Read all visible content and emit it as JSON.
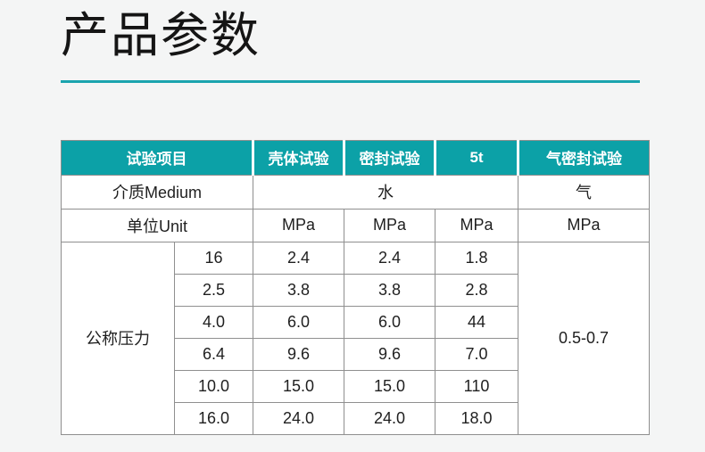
{
  "page": {
    "title": "产品参数",
    "background_color": "#f4f5f5",
    "accent_color": "#1ba4ae",
    "header_color": "#0ca1a7"
  },
  "table": {
    "headers": {
      "test_item": "试验项目",
      "shell_test": "壳体试验",
      "seal_test": "密封试验",
      "five_t": "5t",
      "gas_seal_test": "气密封试验"
    },
    "medium_row": {
      "label": "介质Medium",
      "water_value": "水",
      "gas_value": "气"
    },
    "unit_row": {
      "label": "单位Unit",
      "units": [
        "MPa",
        "MPa",
        "MPa",
        "MPa"
      ]
    },
    "pressure_label": "公称压力",
    "gas_seal_range": "0.5-0.7",
    "rows": [
      {
        "dn": "16",
        "shell": "2.4",
        "seal": "2.4",
        "five_t": "1.8"
      },
      {
        "dn": "2.5",
        "shell": "3.8",
        "seal": "3.8",
        "five_t": "2.8"
      },
      {
        "dn": "4.0",
        "shell": "6.0",
        "seal": "6.0",
        "five_t": "44"
      },
      {
        "dn": "6.4",
        "shell": "9.6",
        "seal": "9.6",
        "five_t": "7.0"
      },
      {
        "dn": "10.0",
        "shell": "15.0",
        "seal": "15.0",
        "five_t": "110"
      },
      {
        "dn": "16.0",
        "shell": "24.0",
        "seal": "24.0",
        "five_t": "18.0"
      }
    ]
  }
}
